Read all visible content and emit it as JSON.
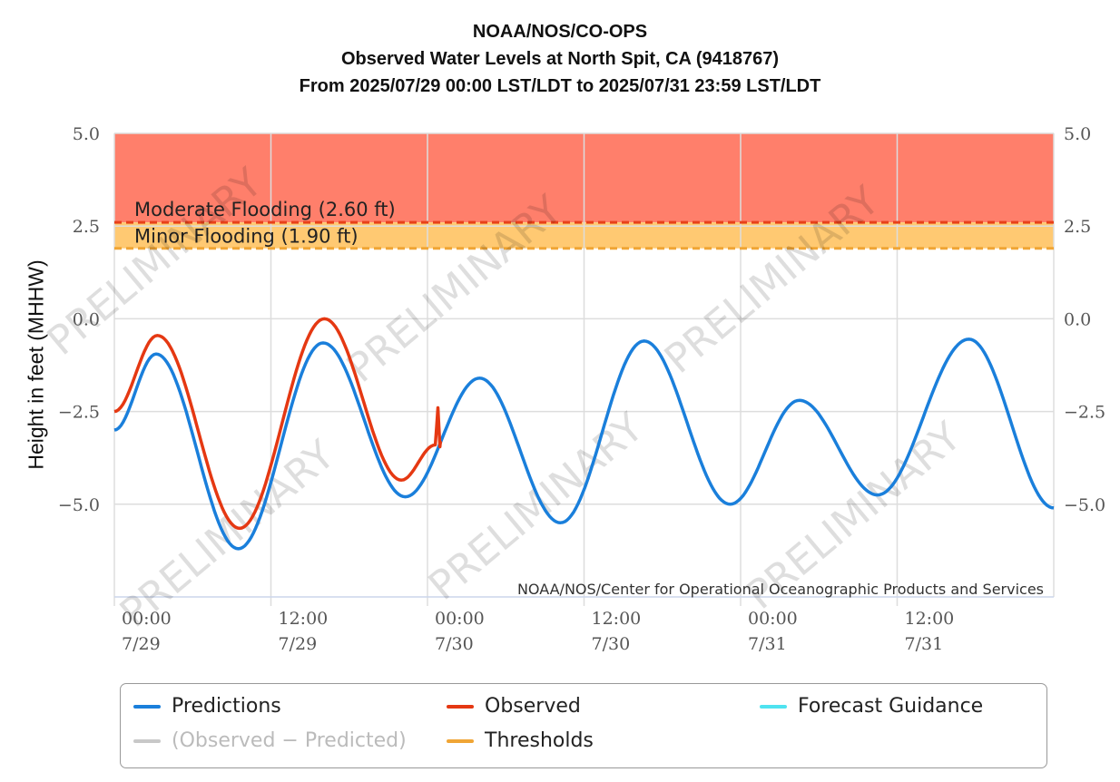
{
  "chart_data": {
    "type": "line",
    "title": [
      "NOAA/NOS/CO-OPS",
      "Observed Water Levels at North Spit, CA (9418767)",
      "From 2025/07/29 00:00 LST/LDT to 2025/07/31 23:59 LST/LDT"
    ],
    "ylabel": "Height in feet (MHHW)",
    "xlabel": "",
    "x_unit": "hours since 2025/07/29 00:00",
    "xlim": [
      0,
      72
    ],
    "ylim": [
      -7.5,
      5
    ],
    "yticks": [
      {
        "value": 5,
        "label": "5.0"
      },
      {
        "value": 2.5,
        "label": "2.5"
      },
      {
        "value": 0,
        "label": "0.0"
      },
      {
        "value": -2.5,
        "label": "−2.5"
      },
      {
        "value": -5,
        "label": "−5.0"
      }
    ],
    "xticks": [
      {
        "value": 0,
        "time": "00:00",
        "date": "7/29"
      },
      {
        "value": 12,
        "time": "12:00",
        "date": "7/29"
      },
      {
        "value": 24,
        "time": "00:00",
        "date": "7/30"
      },
      {
        "value": 36,
        "time": "12:00",
        "date": "7/30"
      },
      {
        "value": 48,
        "time": "00:00",
        "date": "7/31"
      },
      {
        "value": 60,
        "time": "12:00",
        "date": "7/31"
      }
    ],
    "grid": true,
    "thresholds": [
      {
        "name": "Moderate Flooding (2.60 ft)",
        "value": 2.6,
        "color": "#E8401A",
        "band_color": "#FF7F6B"
      },
      {
        "name": "Minor Flooding (1.90 ft)",
        "value": 1.9,
        "color": "#F0A535",
        "band_color": "#FFC972"
      }
    ],
    "series": [
      {
        "name": "Predictions",
        "color": "#1A7FDB",
        "points": [
          [
            0,
            -3.0
          ],
          [
            3.2,
            -0.95
          ],
          [
            9.5,
            -6.2
          ],
          [
            16.0,
            -0.65
          ],
          [
            22.3,
            -4.8
          ],
          [
            28.0,
            -1.6
          ],
          [
            34.2,
            -5.5
          ],
          [
            40.6,
            -0.6
          ],
          [
            47.2,
            -5.0
          ],
          [
            52.5,
            -2.2
          ],
          [
            58.5,
            -4.75
          ],
          [
            65.5,
            -0.55
          ],
          [
            72,
            -5.1
          ]
        ]
      },
      {
        "name": "Observed",
        "color": "#E53812",
        "points": [
          [
            0,
            -2.5
          ],
          [
            3.3,
            -0.45
          ],
          [
            9.6,
            -5.65
          ],
          [
            16.1,
            0.0
          ],
          [
            22.0,
            -4.35
          ],
          [
            24.6,
            -3.4
          ],
          [
            24.8,
            -2.4
          ],
          [
            24.95,
            -3.45
          ],
          [
            25.0,
            -3.3
          ]
        ]
      }
    ],
    "legend": [
      {
        "label": "Predictions",
        "color": "#1A7FDB",
        "muted": false
      },
      {
        "label": "Observed",
        "color": "#E53812",
        "muted": false
      },
      {
        "label": "Forecast Guidance",
        "color": "#4FE3F0",
        "muted": false
      },
      {
        "label": "(Observed − Predicted)",
        "color": "#C8C8C8",
        "muted": true
      },
      {
        "label": "Thresholds",
        "color": "#F0A535",
        "muted": false
      }
    ],
    "legend_position": "bottom",
    "credit": "NOAA/NOS/Center for Operational Oceanographic Products and Services",
    "watermark": "PRELIMINARY"
  }
}
